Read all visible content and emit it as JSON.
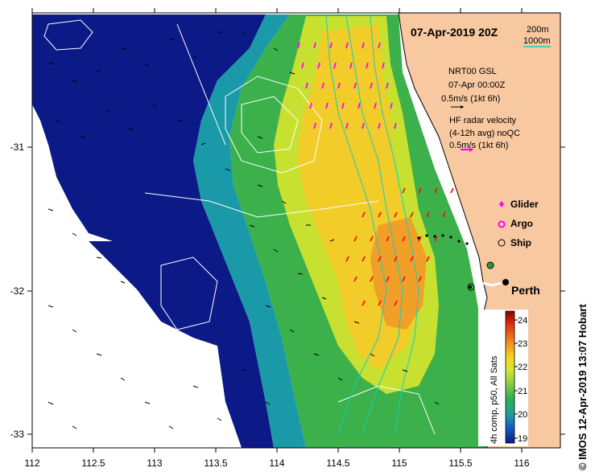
{
  "map": {
    "title": "07-Apr-2019 20Z",
    "place_label": "Perth",
    "credit": "© IMOS 12-Apr-2019 13:07 Hobart",
    "colorbar_label": "4h comp, p50, All Sats",
    "colorbar_ticks": [
      "24",
      "23",
      "22",
      "21",
      "20",
      "19"
    ],
    "colorbar_colors": [
      "#8b0000",
      "#e03010",
      "#f08020",
      "#f5d020",
      "#d8e830",
      "#90d040",
      "#30b050",
      "#20a0a0",
      "#1060c0",
      "#0a1a80"
    ],
    "contours_legend": {
      "line1": "200m",
      "line2": "1000m",
      "color": "#10d0c0"
    },
    "model_legend": {
      "line1": "NRT00 GSL",
      "line2": "07-Apr 00:00Z",
      "line3": "0.5m/s (1kt 6h)"
    },
    "radar_legend": {
      "line1": "HF radar velocity",
      "line2": "(4-12h avg) noQC",
      "line3": "0.5m/s (1kt 6h)",
      "color": "#ff00ff"
    },
    "symbols_legend": [
      {
        "label": "Glider",
        "symbol": "diamond-icon",
        "color": "#ff00ff"
      },
      {
        "label": "Argo",
        "symbol": "circle-icon",
        "color": "#ff00ff"
      },
      {
        "label": "Ship",
        "symbol": "circle-icon",
        "color": "#000000"
      }
    ],
    "x_ticks": [
      "112",
      "112.5",
      "113",
      "113.5",
      "114",
      "114.5",
      "115",
      "115.5",
      "116"
    ],
    "y_ticks": [
      "-31",
      "-32",
      "-33"
    ],
    "land_color": "#f8c8a0",
    "nodata_color": "#ffffff"
  }
}
